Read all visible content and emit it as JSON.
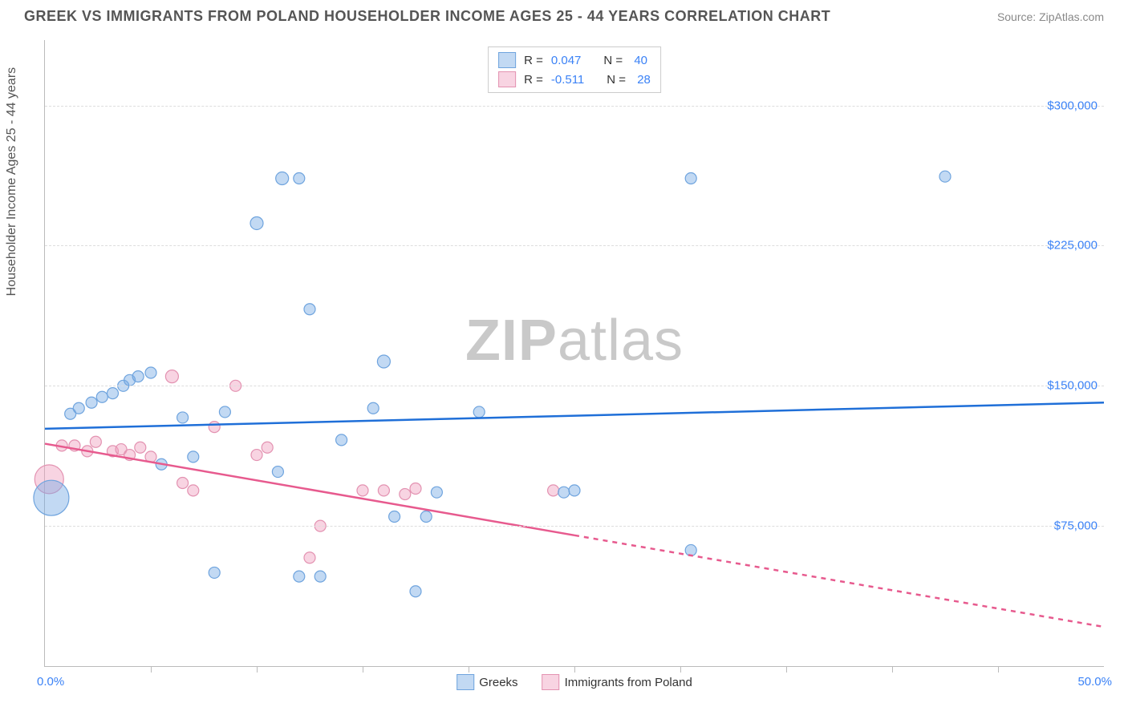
{
  "header": {
    "title": "GREEK VS IMMIGRANTS FROM POLAND HOUSEHOLDER INCOME AGES 25 - 44 YEARS CORRELATION CHART",
    "source": "Source: ZipAtlas.com"
  },
  "watermark": {
    "zip": "ZIP",
    "atlas": "atlas"
  },
  "axes": {
    "y_title": "Householder Income Ages 25 - 44 years",
    "x_min_label": "0.0%",
    "x_max_label": "50.0%",
    "x_min": 0,
    "x_max": 50,
    "y_min": 0,
    "y_max": 335000,
    "y_gridlines": [
      75000,
      150000,
      225000,
      300000
    ],
    "y_labels": [
      "$75,000",
      "$150,000",
      "$225,000",
      "$300,000"
    ],
    "x_ticks": [
      5,
      10,
      15,
      20,
      25,
      30,
      35,
      40,
      45
    ]
  },
  "colors": {
    "series_a_fill": "rgba(120,170,228,0.45)",
    "series_a_stroke": "#6fa4de",
    "series_b_fill": "rgba(240,160,190,0.45)",
    "series_b_stroke": "#e392b1",
    "trend_a": "#1f6fd8",
    "trend_b": "#e75a8e",
    "axis_text": "#3b82f6",
    "grid": "#dddddd"
  },
  "stats_legend": {
    "rows": [
      {
        "swatch": "a",
        "r_label": "R =",
        "r": "0.047",
        "n_label": "N =",
        "n": "40"
      },
      {
        "swatch": "b",
        "r_label": "R =",
        "r": "-0.511",
        "n_label": "N =",
        "n": "28"
      }
    ]
  },
  "bottom_legend": {
    "items": [
      {
        "swatch": "a",
        "label": "Greeks"
      },
      {
        "swatch": "b",
        "label": "Immigrants from Poland"
      }
    ]
  },
  "series_a": {
    "trend": {
      "x1": 0,
      "y1": 127000,
      "x2": 50,
      "y2": 141000
    },
    "points": [
      {
        "x": 0.3,
        "y": 90000,
        "r": 22
      },
      {
        "x": 1.2,
        "y": 135000,
        "r": 7
      },
      {
        "x": 1.6,
        "y": 138000,
        "r": 7
      },
      {
        "x": 2.2,
        "y": 141000,
        "r": 7
      },
      {
        "x": 2.7,
        "y": 144000,
        "r": 7
      },
      {
        "x": 3.2,
        "y": 146000,
        "r": 7
      },
      {
        "x": 3.7,
        "y": 150000,
        "r": 7
      },
      {
        "x": 4.0,
        "y": 153000,
        "r": 7
      },
      {
        "x": 4.4,
        "y": 155000,
        "r": 7
      },
      {
        "x": 5.0,
        "y": 157000,
        "r": 7
      },
      {
        "x": 5.5,
        "y": 108000,
        "r": 7
      },
      {
        "x": 6.5,
        "y": 133000,
        "r": 7
      },
      {
        "x": 7.0,
        "y": 112000,
        "r": 7
      },
      {
        "x": 8.0,
        "y": 50000,
        "r": 7
      },
      {
        "x": 8.5,
        "y": 136000,
        "r": 7
      },
      {
        "x": 10.0,
        "y": 237000,
        "r": 8
      },
      {
        "x": 11.2,
        "y": 261000,
        "r": 8
      },
      {
        "x": 12.0,
        "y": 261000,
        "r": 7
      },
      {
        "x": 11.0,
        "y": 104000,
        "r": 7
      },
      {
        "x": 12.0,
        "y": 48000,
        "r": 7
      },
      {
        "x": 12.5,
        "y": 191000,
        "r": 7
      },
      {
        "x": 13.0,
        "y": 48000,
        "r": 7
      },
      {
        "x": 14.0,
        "y": 121000,
        "r": 7
      },
      {
        "x": 15.5,
        "y": 138000,
        "r": 7
      },
      {
        "x": 16.0,
        "y": 163000,
        "r": 8
      },
      {
        "x": 16.5,
        "y": 80000,
        "r": 7
      },
      {
        "x": 17.5,
        "y": 40000,
        "r": 7
      },
      {
        "x": 18.5,
        "y": 93000,
        "r": 7
      },
      {
        "x": 18.0,
        "y": 80000,
        "r": 7
      },
      {
        "x": 20.5,
        "y": 136000,
        "r": 7
      },
      {
        "x": 24.5,
        "y": 93000,
        "r": 7
      },
      {
        "x": 25.0,
        "y": 94000,
        "r": 7
      },
      {
        "x": 30.5,
        "y": 62000,
        "r": 7
      },
      {
        "x": 30.5,
        "y": 261000,
        "r": 7
      },
      {
        "x": 42.5,
        "y": 262000,
        "r": 7
      }
    ]
  },
  "series_b": {
    "trend_solid": {
      "x1": 0,
      "y1": 119000,
      "x2": 25,
      "y2": 70000
    },
    "trend_dash": {
      "x1": 25,
      "y1": 70000,
      "x2": 50,
      "y2": 21000
    },
    "points": [
      {
        "x": 0.2,
        "y": 100000,
        "r": 18
      },
      {
        "x": 0.8,
        "y": 118000,
        "r": 7
      },
      {
        "x": 1.4,
        "y": 118000,
        "r": 7
      },
      {
        "x": 2.0,
        "y": 115000,
        "r": 7
      },
      {
        "x": 2.4,
        "y": 120000,
        "r": 7
      },
      {
        "x": 3.2,
        "y": 115000,
        "r": 7
      },
      {
        "x": 3.6,
        "y": 116000,
        "r": 7
      },
      {
        "x": 4.0,
        "y": 113000,
        "r": 7
      },
      {
        "x": 4.5,
        "y": 117000,
        "r": 7
      },
      {
        "x": 5.0,
        "y": 112000,
        "r": 7
      },
      {
        "x": 6.0,
        "y": 155000,
        "r": 8
      },
      {
        "x": 6.5,
        "y": 98000,
        "r": 7
      },
      {
        "x": 7.0,
        "y": 94000,
        "r": 7
      },
      {
        "x": 8.0,
        "y": 128000,
        "r": 7
      },
      {
        "x": 9.0,
        "y": 150000,
        "r": 7
      },
      {
        "x": 10.0,
        "y": 113000,
        "r": 7
      },
      {
        "x": 10.5,
        "y": 117000,
        "r": 7
      },
      {
        "x": 12.5,
        "y": 58000,
        "r": 7
      },
      {
        "x": 13.0,
        "y": 75000,
        "r": 7
      },
      {
        "x": 15.0,
        "y": 94000,
        "r": 7
      },
      {
        "x": 16.0,
        "y": 94000,
        "r": 7
      },
      {
        "x": 17.0,
        "y": 92000,
        "r": 7
      },
      {
        "x": 17.5,
        "y": 95000,
        "r": 7
      },
      {
        "x": 24.0,
        "y": 94000,
        "r": 7
      }
    ]
  }
}
